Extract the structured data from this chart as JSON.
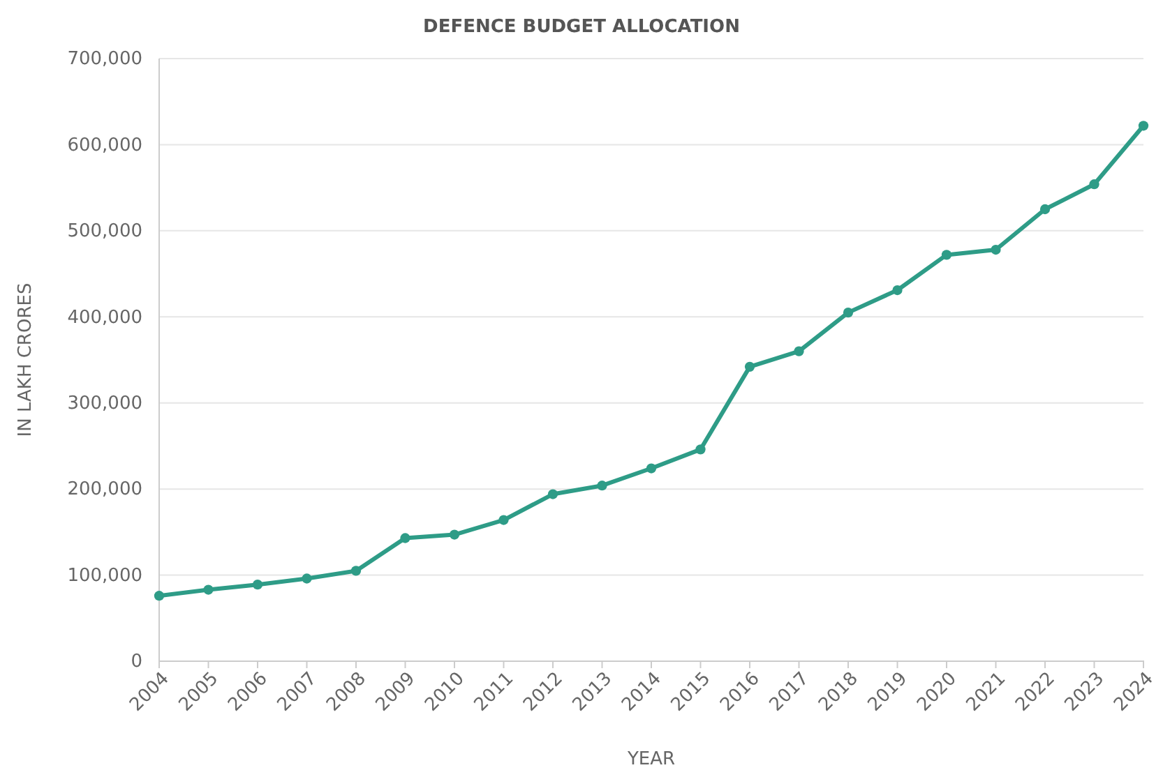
{
  "chart_data": {
    "type": "line",
    "title": "DEFENCE BUDGET ALLOCATION",
    "xlabel": "YEAR",
    "ylabel": "IN LAKH CRORES",
    "categories": [
      "2004",
      "2005",
      "2006",
      "2007",
      "2008",
      "2009",
      "2010",
      "2011",
      "2012",
      "2013",
      "2014",
      "2015",
      "2016",
      "2017",
      "2018",
      "2019",
      "2020",
      "2021",
      "2022",
      "2023",
      "2024"
    ],
    "series": [
      {
        "color": "#2e9c87",
        "values": [
          76000,
          83000,
          89000,
          96000,
          105000,
          143000,
          147000,
          164000,
          194000,
          204000,
          224000,
          246000,
          342000,
          360000,
          405000,
          431000,
          472000,
          478000,
          525000,
          554000,
          622000
        ]
      }
    ],
    "ylim": [
      0,
      700000
    ],
    "yticks": [
      {
        "value": 0,
        "label": "0"
      },
      {
        "value": 100000,
        "label": "100,000"
      },
      {
        "value": 200000,
        "label": "200,000"
      },
      {
        "value": 300000,
        "label": "300,000"
      },
      {
        "value": 400000,
        "label": "400,000"
      },
      {
        "value": 500000,
        "label": "500,000"
      },
      {
        "value": 600000,
        "label": "600,000"
      },
      {
        "value": 700000,
        "label": "700,000"
      }
    ],
    "grid": "y",
    "marker": "circle",
    "line_style": "solid"
  }
}
